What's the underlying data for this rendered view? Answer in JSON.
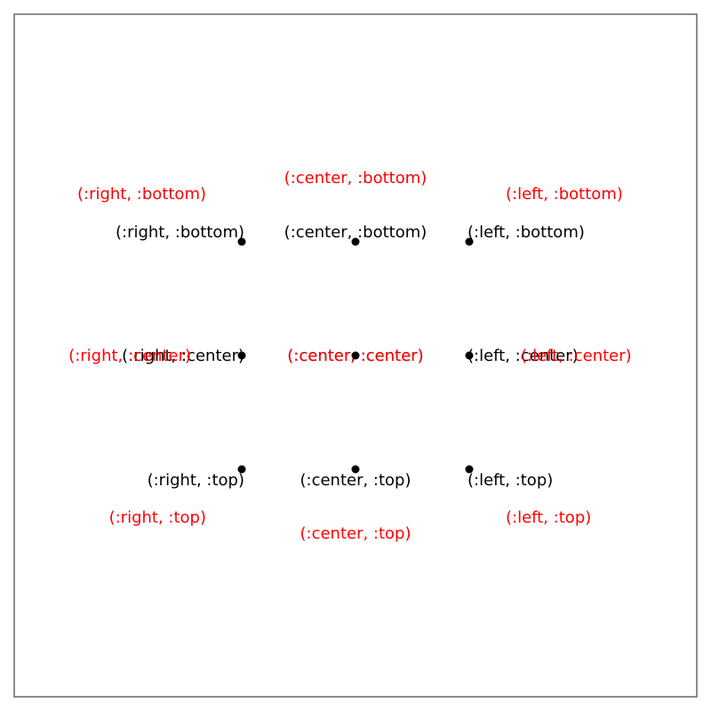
{
  "points": [
    {
      "id": "right-bottom",
      "black_label": "(:right, :bottom)",
      "red_label": "(:right, :bottom)"
    },
    {
      "id": "center-bottom",
      "black_label": "(:center, :bottom)",
      "red_label": "(:center, :bottom)"
    },
    {
      "id": "left-bottom",
      "black_label": "(:left, :bottom)",
      "red_label": "(:left, :bottom)"
    },
    {
      "id": "right-center",
      "black_label": "(:right, :center)",
      "red_label": "(:right, :center)"
    },
    {
      "id": "center-center",
      "black_label": "(:center, :center)",
      "red_label": "(:center, :center)"
    },
    {
      "id": "left-center",
      "black_label": "(:left, :center)",
      "red_label": "(:left, :center)"
    },
    {
      "id": "right-top",
      "black_label": "(:right, :top)",
      "red_label": "(:right, :top)"
    },
    {
      "id": "center-top",
      "black_label": "(:center, :top)",
      "red_label": "(:center, :top)"
    },
    {
      "id": "left-top",
      "black_label": "(:left, :top)",
      "red_label": "(:left, :top)"
    }
  ],
  "colors": {
    "frame": "#666666",
    "marker": "#000000",
    "label_primary": "#000000",
    "label_secondary": "#ff0000"
  }
}
